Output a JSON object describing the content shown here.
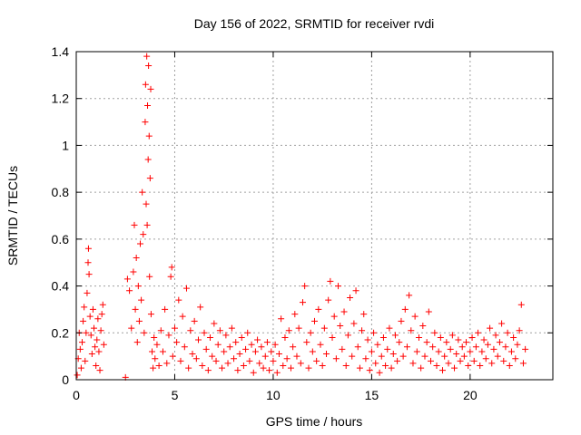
{
  "chart_data": {
    "type": "scatter",
    "title": "Day 156 of 2022, SRMTID for receiver rvdi",
    "xlabel": "GPS time / hours",
    "ylabel": "SRMTID / TECUs",
    "xlim": [
      0,
      24.2
    ],
    "ylim": [
      0,
      1.4
    ],
    "x_ticks": [
      0,
      5,
      10,
      15,
      20
    ],
    "y_ticks": [
      0,
      0.2,
      0.4,
      0.6,
      0.8,
      1.0,
      1.2,
      1.4
    ],
    "x_tick_labels": [
      "0",
      "5",
      "10",
      "15",
      "20"
    ],
    "y_tick_labels": [
      "0",
      "0.2",
      "0.4",
      "0.6",
      "0.8",
      "1",
      "1.2",
      "1.4"
    ],
    "grid": true,
    "marker": "+",
    "colors": {
      "points": "#ff0000",
      "axes": "#000000",
      "grid": "#a0a0a0"
    },
    "series": [
      {
        "values": [
          [
            0.05,
            0.02
          ],
          [
            0.1,
            0.09
          ],
          [
            0.15,
            0.2
          ],
          [
            0.2,
            0.13
          ],
          [
            0.25,
            0.05
          ],
          [
            0.3,
            0.16
          ],
          [
            0.35,
            0.25
          ],
          [
            0.4,
            0.31
          ],
          [
            0.45,
            0.08
          ],
          [
            0.5,
            0.2
          ],
          [
            0.55,
            0.37
          ],
          [
            0.6,
            0.5
          ],
          [
            0.62,
            0.56
          ],
          [
            0.65,
            0.45
          ],
          [
            0.7,
            0.27
          ],
          [
            0.75,
            0.19
          ],
          [
            0.8,
            0.11
          ],
          [
            0.85,
            0.3
          ],
          [
            0.9,
            0.22
          ],
          [
            0.95,
            0.14
          ],
          [
            1.0,
            0.06
          ],
          [
            1.05,
            0.17
          ],
          [
            1.1,
            0.26
          ],
          [
            1.15,
            0.12
          ],
          [
            1.2,
            0.04
          ],
          [
            1.25,
            0.21
          ],
          [
            1.3,
            0.28
          ],
          [
            1.35,
            0.32
          ],
          [
            1.4,
            0.15
          ],
          [
            2.5,
            0.01
          ],
          [
            2.6,
            0.43
          ],
          [
            2.7,
            0.38
          ],
          [
            2.8,
            0.22
          ],
          [
            2.9,
            0.46
          ],
          [
            2.95,
            0.66
          ],
          [
            3.0,
            0.3
          ],
          [
            3.05,
            0.52
          ],
          [
            3.1,
            0.16
          ],
          [
            3.15,
            0.4
          ],
          [
            3.2,
            0.25
          ],
          [
            3.25,
            0.58
          ],
          [
            3.3,
            0.34
          ],
          [
            3.35,
            0.8
          ],
          [
            3.4,
            0.62
          ],
          [
            3.45,
            0.2
          ],
          [
            3.5,
            1.1
          ],
          [
            3.52,
            1.26
          ],
          [
            3.55,
            0.75
          ],
          [
            3.58,
            1.38
          ],
          [
            3.6,
            0.66
          ],
          [
            3.62,
            1.17
          ],
          [
            3.65,
            0.94
          ],
          [
            3.67,
            1.34
          ],
          [
            3.7,
            1.04
          ],
          [
            3.72,
            0.44
          ],
          [
            3.75,
            0.86
          ],
          [
            3.78,
            1.24
          ],
          [
            3.8,
            0.28
          ],
          [
            3.85,
            0.12
          ],
          [
            3.9,
            0.05
          ],
          [
            3.95,
            0.18
          ],
          [
            4.0,
            0.09
          ],
          [
            4.1,
            0.15
          ],
          [
            4.2,
            0.06
          ],
          [
            4.3,
            0.21
          ],
          [
            4.4,
            0.12
          ],
          [
            4.5,
            0.3
          ],
          [
            4.6,
            0.07
          ],
          [
            4.7,
            0.19
          ],
          [
            4.8,
            0.44
          ],
          [
            4.85,
            0.48
          ],
          [
            4.9,
            0.1
          ],
          [
            5.0,
            0.22
          ],
          [
            5.1,
            0.16
          ],
          [
            5.2,
            0.34
          ],
          [
            5.3,
            0.08
          ],
          [
            5.4,
            0.27
          ],
          [
            5.5,
            0.14
          ],
          [
            5.6,
            0.39
          ],
          [
            5.7,
            0.05
          ],
          [
            5.8,
            0.21
          ],
          [
            5.9,
            0.11
          ],
          [
            6.0,
            0.25
          ],
          [
            6.1,
            0.09
          ],
          [
            6.2,
            0.17
          ],
          [
            6.3,
            0.31
          ],
          [
            6.4,
            0.06
          ],
          [
            6.5,
            0.2
          ],
          [
            6.6,
            0.13
          ],
          [
            6.7,
            0.04
          ],
          [
            6.8,
            0.18
          ],
          [
            6.9,
            0.1
          ],
          [
            7.0,
            0.24
          ],
          [
            7.1,
            0.08
          ],
          [
            7.2,
            0.15
          ],
          [
            7.3,
            0.21
          ],
          [
            7.4,
            0.05
          ],
          [
            7.5,
            0.12
          ],
          [
            7.6,
            0.19
          ],
          [
            7.7,
            0.07
          ],
          [
            7.8,
            0.14
          ],
          [
            7.9,
            0.22
          ],
          [
            8.0,
            0.09
          ],
          [
            8.1,
            0.16
          ],
          [
            8.2,
            0.04
          ],
          [
            8.3,
            0.11
          ],
          [
            8.4,
            0.18
          ],
          [
            8.5,
            0.06
          ],
          [
            8.6,
            0.13
          ],
          [
            8.7,
            0.2
          ],
          [
            8.8,
            0.08
          ],
          [
            8.9,
            0.15
          ],
          [
            9.0,
            0.03
          ],
          [
            9.1,
            0.12
          ],
          [
            9.2,
            0.17
          ],
          [
            9.3,
            0.07
          ],
          [
            9.4,
            0.14
          ],
          [
            9.5,
            0.05
          ],
          [
            9.6,
            0.1
          ],
          [
            9.7,
            0.16
          ],
          [
            9.8,
            0.04
          ],
          [
            9.9,
            0.12
          ],
          [
            10.0,
            0.08
          ],
          [
            10.1,
            0.15
          ],
          [
            10.2,
            0.03
          ],
          [
            10.3,
            0.11
          ],
          [
            10.4,
            0.26
          ],
          [
            10.5,
            0.06
          ],
          [
            10.6,
            0.18
          ],
          [
            10.7,
            0.09
          ],
          [
            10.8,
            0.21
          ],
          [
            10.9,
            0.05
          ],
          [
            11.0,
            0.14
          ],
          [
            11.1,
            0.28
          ],
          [
            11.2,
            0.1
          ],
          [
            11.3,
            0.22
          ],
          [
            11.4,
            0.07
          ],
          [
            11.5,
            0.33
          ],
          [
            11.6,
            0.4
          ],
          [
            11.7,
            0.16
          ],
          [
            11.8,
            0.05
          ],
          [
            11.9,
            0.2
          ],
          [
            12.0,
            0.12
          ],
          [
            12.1,
            0.25
          ],
          [
            12.2,
            0.08
          ],
          [
            12.3,
            0.3
          ],
          [
            12.4,
            0.15
          ],
          [
            12.5,
            0.06
          ],
          [
            12.6,
            0.22
          ],
          [
            12.7,
            0.11
          ],
          [
            12.8,
            0.34
          ],
          [
            12.9,
            0.42
          ],
          [
            13.0,
            0.18
          ],
          [
            13.1,
            0.27
          ],
          [
            13.2,
            0.09
          ],
          [
            13.3,
            0.4
          ],
          [
            13.4,
            0.23
          ],
          [
            13.5,
            0.13
          ],
          [
            13.6,
            0.29
          ],
          [
            13.7,
            0.06
          ],
          [
            13.8,
            0.19
          ],
          [
            13.9,
            0.35
          ],
          [
            14.0,
            0.1
          ],
          [
            14.1,
            0.24
          ],
          [
            14.2,
            0.38
          ],
          [
            14.3,
            0.14
          ],
          [
            14.4,
            0.05
          ],
          [
            14.5,
            0.21
          ],
          [
            14.6,
            0.28
          ],
          [
            14.7,
            0.09
          ],
          [
            14.8,
            0.17
          ],
          [
            14.9,
            0.04
          ],
          [
            15.0,
            0.12
          ],
          [
            15.1,
            0.2
          ],
          [
            15.2,
            0.07
          ],
          [
            15.3,
            0.15
          ],
          [
            15.4,
            0.03
          ],
          [
            15.5,
            0.1
          ],
          [
            15.6,
            0.18
          ],
          [
            15.7,
            0.06
          ],
          [
            15.8,
            0.13
          ],
          [
            15.9,
            0.22
          ],
          [
            16.0,
            0.05
          ],
          [
            16.1,
            0.11
          ],
          [
            16.2,
            0.19
          ],
          [
            16.3,
            0.08
          ],
          [
            16.4,
            0.16
          ],
          [
            16.5,
            0.25
          ],
          [
            16.6,
            0.1
          ],
          [
            16.7,
            0.3
          ],
          [
            16.8,
            0.14
          ],
          [
            16.9,
            0.36
          ],
          [
            17.0,
            0.21
          ],
          [
            17.1,
            0.07
          ],
          [
            17.2,
            0.27
          ],
          [
            17.3,
            0.12
          ],
          [
            17.4,
            0.18
          ],
          [
            17.5,
            0.05
          ],
          [
            17.6,
            0.23
          ],
          [
            17.7,
            0.1
          ],
          [
            17.8,
            0.16
          ],
          [
            17.9,
            0.29
          ],
          [
            18.0,
            0.08
          ],
          [
            18.1,
            0.14
          ],
          [
            18.2,
            0.2
          ],
          [
            18.3,
            0.06
          ],
          [
            18.4,
            0.12
          ],
          [
            18.5,
            0.18
          ],
          [
            18.6,
            0.04
          ],
          [
            18.7,
            0.1
          ],
          [
            18.8,
            0.16
          ],
          [
            18.9,
            0.07
          ],
          [
            19.0,
            0.13
          ],
          [
            19.1,
            0.19
          ],
          [
            19.2,
            0.05
          ],
          [
            19.3,
            0.11
          ],
          [
            19.4,
            0.17
          ],
          [
            19.5,
            0.08
          ],
          [
            19.6,
            0.14
          ],
          [
            19.7,
            0.1
          ],
          [
            19.8,
            0.16
          ],
          [
            19.9,
            0.06
          ],
          [
            20.0,
            0.12
          ],
          [
            20.1,
            0.18
          ],
          [
            20.2,
            0.08
          ],
          [
            20.3,
            0.14
          ],
          [
            20.4,
            0.2
          ],
          [
            20.5,
            0.06
          ],
          [
            20.6,
            0.12
          ],
          [
            20.7,
            0.17
          ],
          [
            20.8,
            0.09
          ],
          [
            20.9,
            0.15
          ],
          [
            21.0,
            0.22
          ],
          [
            21.1,
            0.07
          ],
          [
            21.2,
            0.13
          ],
          [
            21.3,
            0.19
          ],
          [
            21.4,
            0.1
          ],
          [
            21.5,
            0.16
          ],
          [
            21.6,
            0.24
          ],
          [
            21.7,
            0.08
          ],
          [
            21.8,
            0.14
          ],
          [
            21.9,
            0.2
          ],
          [
            22.0,
            0.06
          ],
          [
            22.1,
            0.12
          ],
          [
            22.2,
            0.18
          ],
          [
            22.3,
            0.09
          ],
          [
            22.4,
            0.15
          ],
          [
            22.5,
            0.21
          ],
          [
            22.6,
            0.32
          ],
          [
            22.7,
            0.07
          ],
          [
            22.8,
            0.13
          ]
        ]
      }
    ]
  }
}
